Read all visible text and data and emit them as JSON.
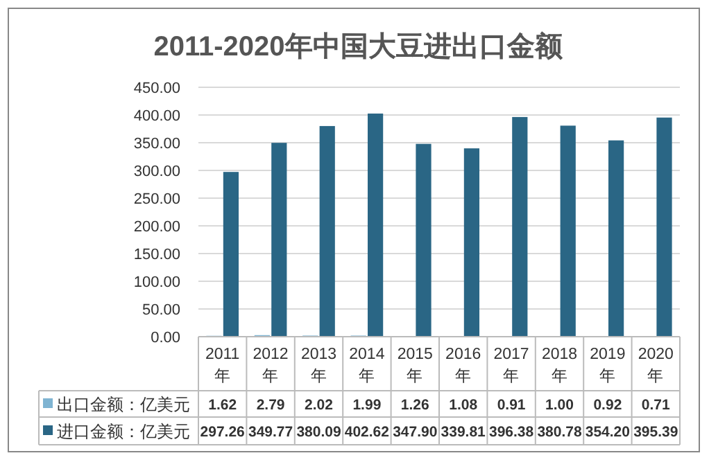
{
  "chart_data": {
    "type": "bar",
    "title": "2011-2020年中国大豆进出口金额",
    "categories": [
      "2011\n年",
      "2012\n年",
      "2013\n年",
      "2014\n年",
      "2015\n年",
      "2016\n年",
      "2017\n年",
      "2018\n年",
      "2019\n年",
      "2020\n年"
    ],
    "series": [
      {
        "name": "出口金额：亿美元",
        "color": "#7fb4d2",
        "values": [
          1.62,
          2.79,
          2.02,
          1.99,
          1.26,
          1.08,
          0.91,
          1.0,
          0.92,
          0.71
        ],
        "value_labels": [
          "1.62",
          "2.79",
          "2.02",
          "1.99",
          "1.26",
          "1.08",
          "0.91",
          "1.00",
          "0.92",
          "0.71"
        ]
      },
      {
        "name": "进口金额：亿美元",
        "color": "#2a6685",
        "values": [
          297.26,
          349.77,
          380.09,
          402.62,
          347.9,
          339.81,
          396.38,
          380.78,
          354.2,
          395.39
        ],
        "value_labels": [
          "297.26",
          "349.77",
          "380.09",
          "402.62",
          "347.90",
          "339.81",
          "396.38",
          "380.78",
          "354.20",
          "395.39"
        ]
      }
    ],
    "ylim": [
      0,
      450
    ],
    "yticks": [
      {
        "value": 0,
        "label": "0.00"
      },
      {
        "value": 50,
        "label": "50.00"
      },
      {
        "value": 100,
        "label": "100.00"
      },
      {
        "value": 150,
        "label": "150.00"
      },
      {
        "value": 200,
        "label": "200.00"
      },
      {
        "value": 250,
        "label": "250.00"
      },
      {
        "value": 300,
        "label": "300.00"
      },
      {
        "value": 350,
        "label": "350.00"
      },
      {
        "value": 400,
        "label": "400.00"
      },
      {
        "value": 450,
        "label": "450.00"
      }
    ],
    "grid": "y",
    "legend": "bottom"
  }
}
